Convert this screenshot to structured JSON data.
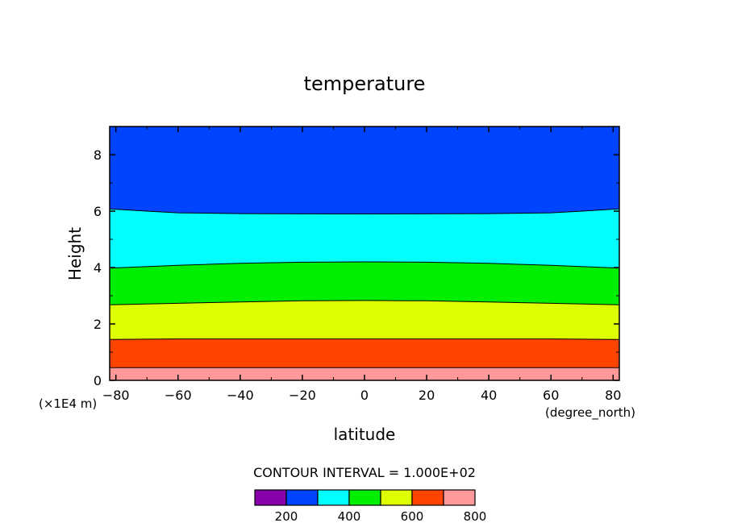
{
  "chart_data": {
    "type": "contour",
    "title": "temperature",
    "xlabel": "latitude",
    "xunits": "(degree_north)",
    "ylabel": "Height",
    "yunits": "(×1E4 m)",
    "xlim": [
      -82,
      82
    ],
    "ylim": [
      0,
      9
    ],
    "x_ticks": [
      -80,
      -60,
      -40,
      -20,
      0,
      20,
      40,
      60,
      80
    ],
    "x_tick_labels": [
      "−80",
      "−60",
      "−40",
      "−20",
      "0",
      "20",
      "40",
      "60",
      "80"
    ],
    "y_ticks": [
      0,
      2,
      4,
      6,
      8
    ],
    "y_tick_labels": [
      "0",
      "2",
      "4",
      "6",
      "8"
    ],
    "contour_interval_text": "CONTOUR INTERVAL = 1.000E+02",
    "fill_colors": [
      "#ff9999",
      "#ff4400",
      "#ddff00",
      "#00ee00",
      "#00ffff",
      "#0044ff"
    ],
    "boundaries": [
      {
        "level": 700,
        "points": [
          [
            -82,
            0.45
          ],
          [
            -40,
            0.45
          ],
          [
            0,
            0.45
          ],
          [
            40,
            0.45
          ],
          [
            82,
            0.45
          ]
        ]
      },
      {
        "level": 600,
        "points": [
          [
            -82,
            1.45
          ],
          [
            -60,
            1.47
          ],
          [
            -40,
            1.47
          ],
          [
            -20,
            1.47
          ],
          [
            0,
            1.47
          ],
          [
            20,
            1.47
          ],
          [
            40,
            1.47
          ],
          [
            60,
            1.47
          ],
          [
            82,
            1.45
          ]
        ]
      },
      {
        "level": 500,
        "points": [
          [
            -82,
            2.68
          ],
          [
            -60,
            2.73
          ],
          [
            -40,
            2.78
          ],
          [
            -20,
            2.82
          ],
          [
            0,
            2.83
          ],
          [
            20,
            2.82
          ],
          [
            40,
            2.78
          ],
          [
            60,
            2.73
          ],
          [
            82,
            2.68
          ]
        ]
      },
      {
        "level": 400,
        "points": [
          [
            -82,
            3.98
          ],
          [
            -60,
            4.08
          ],
          [
            -40,
            4.15
          ],
          [
            -20,
            4.19
          ],
          [
            0,
            4.2
          ],
          [
            20,
            4.19
          ],
          [
            40,
            4.15
          ],
          [
            60,
            4.08
          ],
          [
            82,
            3.98
          ]
        ]
      },
      {
        "level": 300,
        "points": [
          [
            -82,
            6.08
          ],
          [
            -70,
            6.0
          ],
          [
            -60,
            5.94
          ],
          [
            -40,
            5.91
          ],
          [
            0,
            5.9
          ],
          [
            40,
            5.91
          ],
          [
            60,
            5.94
          ],
          [
            70,
            6.0
          ],
          [
            82,
            6.08
          ]
        ]
      }
    ],
    "legend": {
      "colors": [
        "#8800aa",
        "#0044ff",
        "#00ffff",
        "#00ee00",
        "#ddff00",
        "#ff4400",
        "#ff9999"
      ],
      "labels": [
        "200",
        "400",
        "600",
        "800"
      ]
    }
  }
}
